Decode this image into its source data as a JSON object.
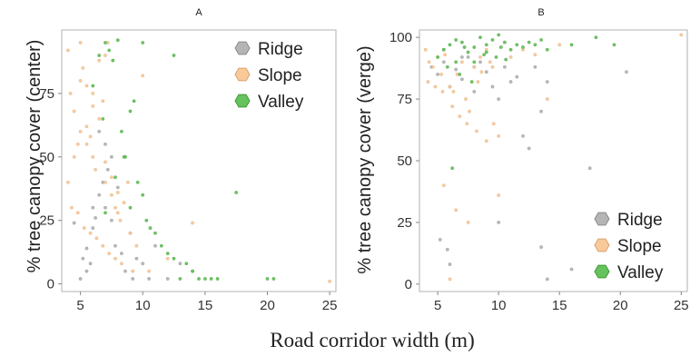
{
  "figure": {
    "xlabel": "Road corridor width (m)"
  },
  "colors": {
    "Ridge": "#b5b5b5",
    "Slope": "#f9c99a",
    "Valley": "#66c25c",
    "ridge_stroke": "#8a8a8a",
    "slope_stroke": "#d9a26e",
    "valley_stroke": "#3f9a38"
  },
  "chart_data": [
    {
      "type": "scatter",
      "title": "A",
      "xlabel": "",
      "ylabel": "% tree canopy cover (center)",
      "xlim": [
        3.5,
        25.5
      ],
      "ylim": [
        -3,
        100
      ],
      "xticks": [
        5,
        10,
        15,
        20,
        25
      ],
      "yticks": [
        0,
        25,
        50,
        75
      ],
      "grid": false,
      "legend": "top-right",
      "series": [
        {
          "name": "Ridge",
          "x": [
            4.5,
            5,
            5.2,
            5.5,
            5.8,
            6,
            6.2,
            6.5,
            6.8,
            7,
            7.2,
            7.5,
            7.8,
            8,
            8.3,
            8.6,
            9,
            9.2,
            9.5,
            10,
            10.5,
            11,
            12,
            13,
            14,
            6.5,
            7,
            7.5,
            5.5,
            6
          ],
          "y": [
            24,
            2,
            10,
            5,
            8,
            22,
            26,
            35,
            40,
            30,
            45,
            25,
            15,
            38,
            12,
            5,
            20,
            2,
            10,
            8,
            2,
            15,
            2,
            8,
            5,
            60,
            55,
            50,
            14,
            30
          ]
        },
        {
          "name": "Slope",
          "x": [
            4,
            4.2,
            4.5,
            4.8,
            5,
            5.2,
            5.5,
            5.8,
            6,
            6.2,
            6.5,
            6.8,
            7,
            7.2,
            7.5,
            7.8,
            8,
            8.2,
            8.5,
            8.8,
            9,
            9.5,
            10,
            4,
            4.5,
            5,
            5.5,
            6,
            6.5,
            7,
            7.5,
            8,
            4.3,
            4.8,
            5.3,
            5.8,
            6.3,
            6.8,
            7.3,
            7.8,
            8.3,
            9.2,
            10.5,
            12,
            14,
            25,
            5,
            5.5,
            6,
            7
          ],
          "y": [
            92,
            75,
            68,
            55,
            95,
            85,
            62,
            58,
            50,
            45,
            88,
            72,
            40,
            95,
            35,
            30,
            28,
            25,
            32,
            40,
            20,
            15,
            82,
            40,
            50,
            60,
            55,
            70,
            65,
            48,
            42,
            36,
            30,
            28,
            22,
            20,
            18,
            15,
            12,
            10,
            8,
            5,
            5,
            10,
            24,
            1,
            80,
            78,
            75,
            90
          ]
        },
        {
          "name": "Valley",
          "x": [
            6,
            6.5,
            7,
            7.3,
            7.6,
            8,
            8.3,
            8.6,
            9,
            9.3,
            9.6,
            10,
            10.3,
            10.6,
            11,
            11.5,
            12,
            12.5,
            13,
            13.5,
            14,
            14.5,
            15,
            15.5,
            16,
            17.5,
            20,
            20.5,
            10,
            12.5,
            9,
            8.5,
            7.8,
            7,
            6.8
          ],
          "y": [
            78,
            90,
            95,
            92,
            88,
            96,
            60,
            50,
            68,
            72,
            40,
            35,
            25,
            22,
            20,
            15,
            12,
            10,
            2,
            8,
            5,
            2,
            2,
            2,
            2,
            36,
            2,
            2,
            95,
            90,
            30,
            50,
            42,
            28,
            65
          ]
        }
      ]
    },
    {
      "type": "scatter",
      "title": "B",
      "xlabel": "",
      "ylabel": "% tree canopy cover (verge)",
      "xlim": [
        3.5,
        25.5
      ],
      "ylim": [
        -3,
        103
      ],
      "xticks": [
        5,
        10,
        15,
        20,
        25
      ],
      "yticks": [
        0,
        25,
        50,
        75,
        100
      ],
      "grid": false,
      "legend": "bottom-right",
      "series": [
        {
          "name": "Ridge",
          "x": [
            4.5,
            5,
            5.5,
            6,
            6.5,
            7,
            7.5,
            8,
            8.5,
            9,
            9.5,
            10,
            10.5,
            11,
            11.5,
            12,
            12.5,
            13,
            13.5,
            14,
            17.5,
            20.5,
            5.2,
            5.8,
            6,
            10,
            13.5,
            14,
            16,
            5.5,
            7,
            8
          ],
          "y": [
            88,
            85,
            90,
            80,
            87,
            83,
            92,
            78,
            90,
            86,
            80,
            75,
            88,
            82,
            84,
            60,
            55,
            88,
            70,
            82,
            47,
            86,
            18,
            14,
            8,
            25,
            15,
            2,
            6,
            95,
            92,
            88
          ]
        },
        {
          "name": "Slope",
          "x": [
            4,
            4.3,
            4.6,
            5,
            5.3,
            5.6,
            6,
            6.3,
            6.6,
            7,
            7.3,
            7.6,
            8,
            8.3,
            8.6,
            9,
            9.3,
            9.6,
            10,
            4.2,
            4.8,
            5.4,
            6.2,
            6.8,
            7.4,
            8.2,
            9,
            10,
            11,
            12,
            13,
            14,
            15,
            25,
            5.5,
            6.5,
            7.5,
            8.5,
            9.5,
            6
          ],
          "y": [
            95,
            90,
            88,
            92,
            85,
            93,
            80,
            78,
            85,
            90,
            75,
            70,
            88,
            82,
            86,
            95,
            90,
            65,
            60,
            82,
            80,
            78,
            72,
            68,
            65,
            62,
            58,
            36,
            92,
            95,
            93,
            75,
            97,
            101,
            40,
            30,
            25,
            92,
            88,
            2
          ]
        },
        {
          "name": "Valley",
          "x": [
            5,
            5.5,
            6,
            6.5,
            7,
            7.5,
            8,
            8.5,
            9,
            9.5,
            10,
            10.5,
            11,
            11.5,
            12,
            12.5,
            13,
            13.5,
            14,
            16,
            18,
            19.5,
            6.2,
            5.8,
            6.8,
            7.8,
            8.8,
            9.8,
            10.2,
            10.6,
            6.5,
            7.2,
            8,
            9
          ],
          "y": [
            92,
            95,
            97,
            90,
            98,
            94,
            96,
            100,
            97,
            99,
            101,
            98,
            95,
            97,
            96,
            98,
            97,
            99,
            95,
            97,
            100,
            97,
            47,
            88,
            85,
            82,
            93,
            92,
            96,
            91,
            99,
            96,
            90,
            94
          ]
        }
      ]
    }
  ]
}
